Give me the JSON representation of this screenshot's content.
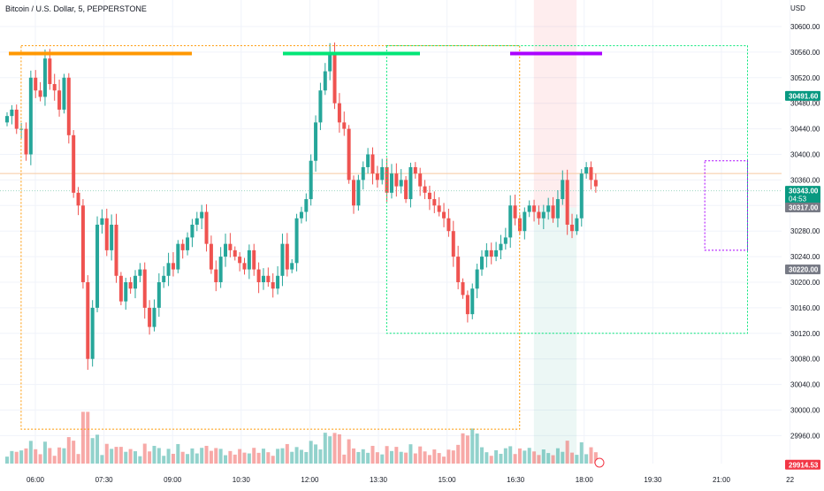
{
  "header": {
    "title": "Bitcoin / U.S. Dollar, 5, PEPPERSTONE"
  },
  "currency": "USD",
  "colors": {
    "up": "#26a69a",
    "down": "#ef5350",
    "grid": "#f0f3fa",
    "orange": "#ff9800",
    "green": "#00e676",
    "purple": "#aa00ff"
  },
  "chart_data": {
    "type": "candlestick",
    "title": "Bitcoin / U.S. Dollar, 5, PEPPERSTONE",
    "y_axis": {
      "label": "USD",
      "ticks": [
        29960,
        30000,
        30040,
        30080,
        30120,
        30160,
        30200,
        30240,
        30280,
        30320,
        30360,
        30400,
        30440,
        30480,
        30520,
        30560,
        30600
      ],
      "ylim": [
        29880,
        30620
      ]
    },
    "x_axis": {
      "ticks": [
        "06:00",
        "07:30",
        "09:00",
        "10:30",
        "12:00",
        "13:30",
        "15:00",
        "16:30",
        "18:00",
        "19:30",
        "21:00",
        "22"
      ]
    },
    "price_labels": [
      {
        "text": "30491.60",
        "value": 30491.6,
        "style": "green"
      },
      {
        "text": "30343.00",
        "value": 30343.0,
        "style": "green",
        "sub": "04:53"
      },
      {
        "text": "30317.00",
        "value": 30317.0,
        "style": "gray"
      },
      {
        "text": "30220.00",
        "value": 30220.0,
        "style": "gray"
      },
      {
        "text": "29914.53",
        "value": 29914.53,
        "style": "red"
      }
    ],
    "closes": [
      30460,
      30470,
      30440,
      30440,
      30400,
      30520,
      30500,
      30490,
      30550,
      30510,
      30500,
      30470,
      30520,
      30430,
      30340,
      30320,
      30200,
      30080,
      30160,
      30290,
      30300,
      30250,
      30290,
      30210,
      30170,
      30200,
      30190,
      30210,
      30220,
      30160,
      30130,
      30160,
      30200,
      30210,
      30230,
      30220,
      30260,
      30250,
      30270,
      30290,
      30300,
      30310,
      30260,
      30220,
      30200,
      30240,
      30260,
      30250,
      30240,
      30230,
      30220,
      30250,
      30220,
      30200,
      30210,
      30200,
      30190,
      30210,
      30260,
      30220,
      30230,
      30300,
      30310,
      30330,
      30390,
      30450,
      30500,
      30530,
      30560,
      30480,
      30450,
      30440,
      30360,
      30320,
      30360,
      30380,
      30400,
      30370,
      30360,
      30380,
      30340,
      30370,
      30350,
      30360,
      30330,
      30380,
      30370,
      30350,
      30340,
      30330,
      30320,
      30310,
      30300,
      30280,
      30240,
      30200,
      30180,
      30150,
      30190,
      30220,
      30240,
      30250,
      30240,
      30250,
      30260,
      30270,
      30320,
      30300,
      30280,
      30310,
      30320,
      30310,
      30300,
      30310,
      30320,
      30300,
      30330,
      30360,
      30290,
      30280,
      30300,
      30370,
      30380,
      30360,
      30350
    ],
    "volume_note": "volume histogram at bottom, bars colored by candle direction",
    "annotations": [
      {
        "type": "rectangle",
        "color": "orange",
        "from": "05:45",
        "to": "14:30",
        "top": 30570,
        "bottom": 29970
      },
      {
        "type": "rectangle",
        "color": "green",
        "from": "12:10",
        "to": "18:30",
        "top": 30570,
        "bottom": 30120
      },
      {
        "type": "rectangle",
        "color": "purple",
        "from": "17:45",
        "to": "18:30",
        "top": 30390,
        "bottom": 30250
      },
      {
        "type": "long-position",
        "from": "14:45",
        "to": "15:30",
        "entry": 30317,
        "target": 30120,
        "stop": 30620
      },
      {
        "type": "horizontal-line",
        "value": 30370
      },
      {
        "type": "horizontal-line",
        "value": 30343
      }
    ]
  }
}
